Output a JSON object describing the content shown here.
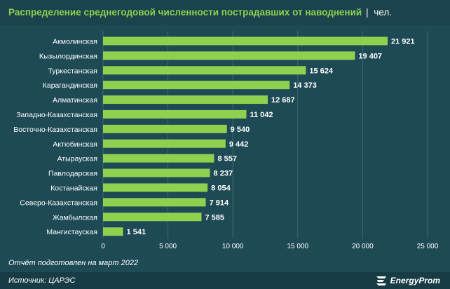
{
  "header": {
    "title": "Распределение среднегодовой численности пострадавших от наводнений",
    "separator": "|",
    "unit": "чел."
  },
  "note": "Отчёт подготовлен на март 2022",
  "footer": {
    "source": "Источник: ЦАРЭС",
    "brand": "EnergyProm"
  },
  "colors": {
    "background": "#1e4a55",
    "bar": "#8fd14f",
    "title": "#8fd14f",
    "text": "#ffffff"
  },
  "chart_data": {
    "type": "bar",
    "orientation": "horizontal",
    "categories": [
      "Акмолинская",
      "Кызылординская",
      "Туркестанская",
      "Карагандинская",
      "Алматинская",
      "Западно-Казахстанская",
      "Восточно-Казахстанская",
      "Актюбинская",
      "Атырауская",
      "Павлодарская",
      "Костанайская",
      "Северо-Казахстанская",
      "Жамбылская",
      "Мангистауская"
    ],
    "values": [
      21921,
      19407,
      15624,
      14373,
      12687,
      11042,
      9540,
      9442,
      8557,
      8237,
      8054,
      7914,
      7585,
      1541
    ],
    "value_labels": [
      "21 921",
      "19 407",
      "15 624",
      "14 373",
      "12 687",
      "11 042",
      "9 540",
      "9 442",
      "8 557",
      "8 237",
      "8 054",
      "7 914",
      "7 585",
      "1 541"
    ],
    "xlim": [
      0,
      25000
    ],
    "xticks": [
      0,
      5000,
      10000,
      15000,
      20000,
      25000
    ],
    "xtick_labels": [
      "0",
      "5 000",
      "10 000",
      "15 000",
      "20 000",
      "25 000"
    ],
    "grid": true,
    "legend": "none"
  }
}
